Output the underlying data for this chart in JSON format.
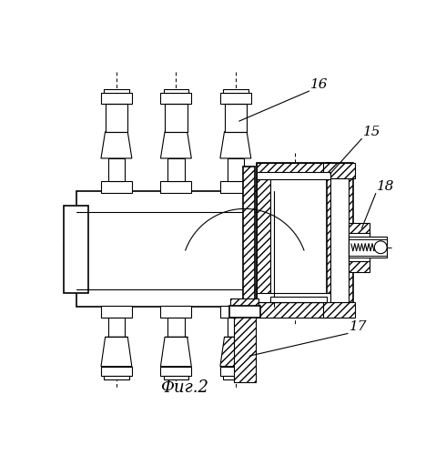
{
  "background_color": "#ffffff",
  "fig_label": "Фиг.2",
  "lw_thin": 0.8,
  "lw_main": 1.2,
  "lw_thick": 1.8
}
